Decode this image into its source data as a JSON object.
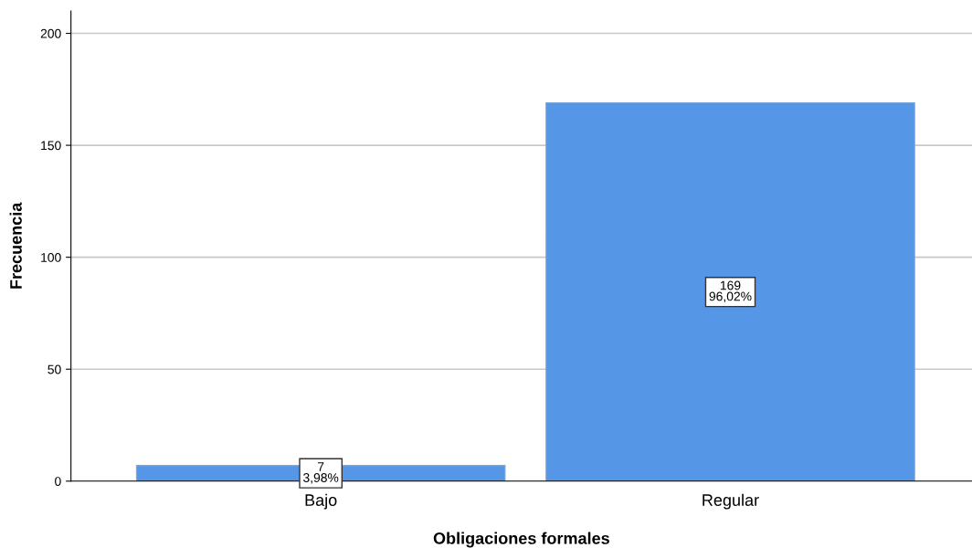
{
  "chart_data": {
    "type": "bar",
    "xlabel": "Obligaciones formales",
    "ylabel": "Frecuencia",
    "categories": [
      "Bajo",
      "Regular"
    ],
    "values": [
      7,
      169
    ],
    "value_labels": [
      "7\n3,98%",
      "169\n96,02%"
    ],
    "color": "#5596e6",
    "ylim": [
      0,
      210
    ],
    "yticks": [
      0,
      50,
      100,
      150,
      200
    ],
    "grid": "y"
  }
}
